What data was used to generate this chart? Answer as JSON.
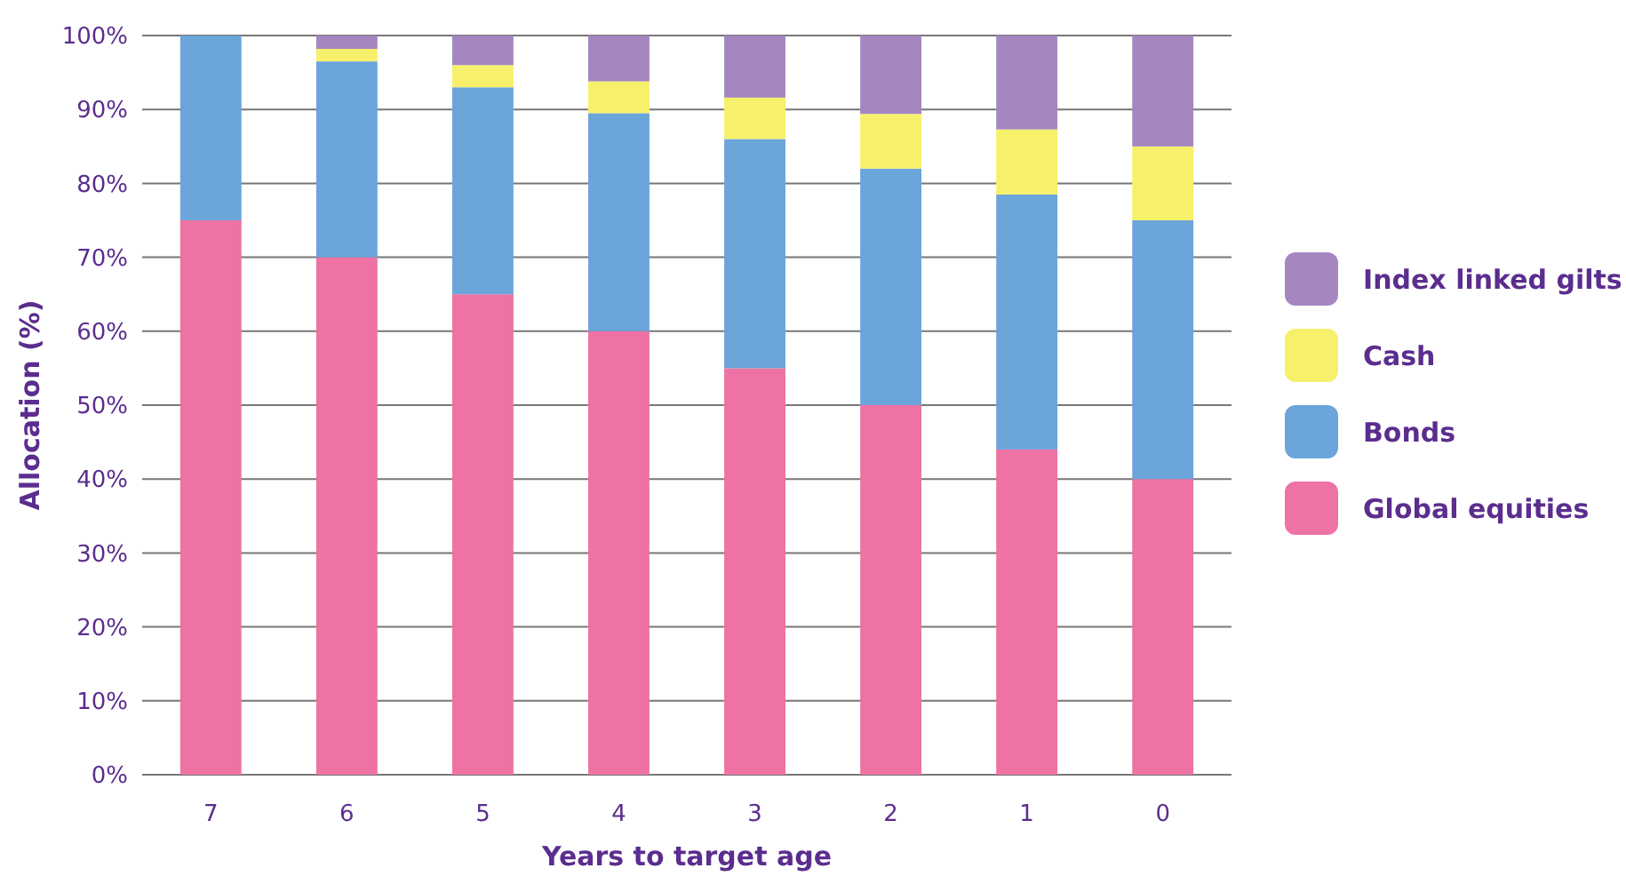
{
  "chart_data": {
    "type": "bar",
    "stacked": true,
    "xlabel": "Years to target age",
    "ylabel": "Allocation (%)",
    "categories": [
      "7",
      "6",
      "5",
      "4",
      "3",
      "2",
      "1",
      "0"
    ],
    "series": [
      {
        "name": "Global equities",
        "color": "#ee72a3",
        "values": [
          75,
          70,
          65,
          60,
          55,
          50,
          44,
          40
        ]
      },
      {
        "name": "Bonds",
        "color": "#6ba5da",
        "values": [
          25,
          26.5,
          28,
          29.5,
          31,
          32,
          34.5,
          35
        ]
      },
      {
        "name": "Cash",
        "color": "#f7f06a",
        "values": [
          0,
          1.7,
          3,
          4.3,
          5.6,
          7.4,
          8.8,
          10
        ]
      },
      {
        "name": "Index linked gilts",
        "color": "#a487c0",
        "values": [
          0,
          1.8,
          4,
          6.2,
          8.4,
          10.6,
          12.7,
          15
        ]
      }
    ],
    "ylim": [
      0,
      100
    ],
    "yticks": [
      {
        "value": 0,
        "label": "0%"
      },
      {
        "value": 10,
        "label": "10%"
      },
      {
        "value": 20,
        "label": "20%"
      },
      {
        "value": 30,
        "label": "30%"
      },
      {
        "value": 40,
        "label": "40%"
      },
      {
        "value": 50,
        "label": "50%"
      },
      {
        "value": 60,
        "label": "60%"
      },
      {
        "value": 70,
        "label": "70%"
      },
      {
        "value": 80,
        "label": "80%"
      },
      {
        "value": 90,
        "label": "90%"
      },
      {
        "value": 100,
        "label": "100%"
      }
    ],
    "grid": "y",
    "legend": "right"
  }
}
